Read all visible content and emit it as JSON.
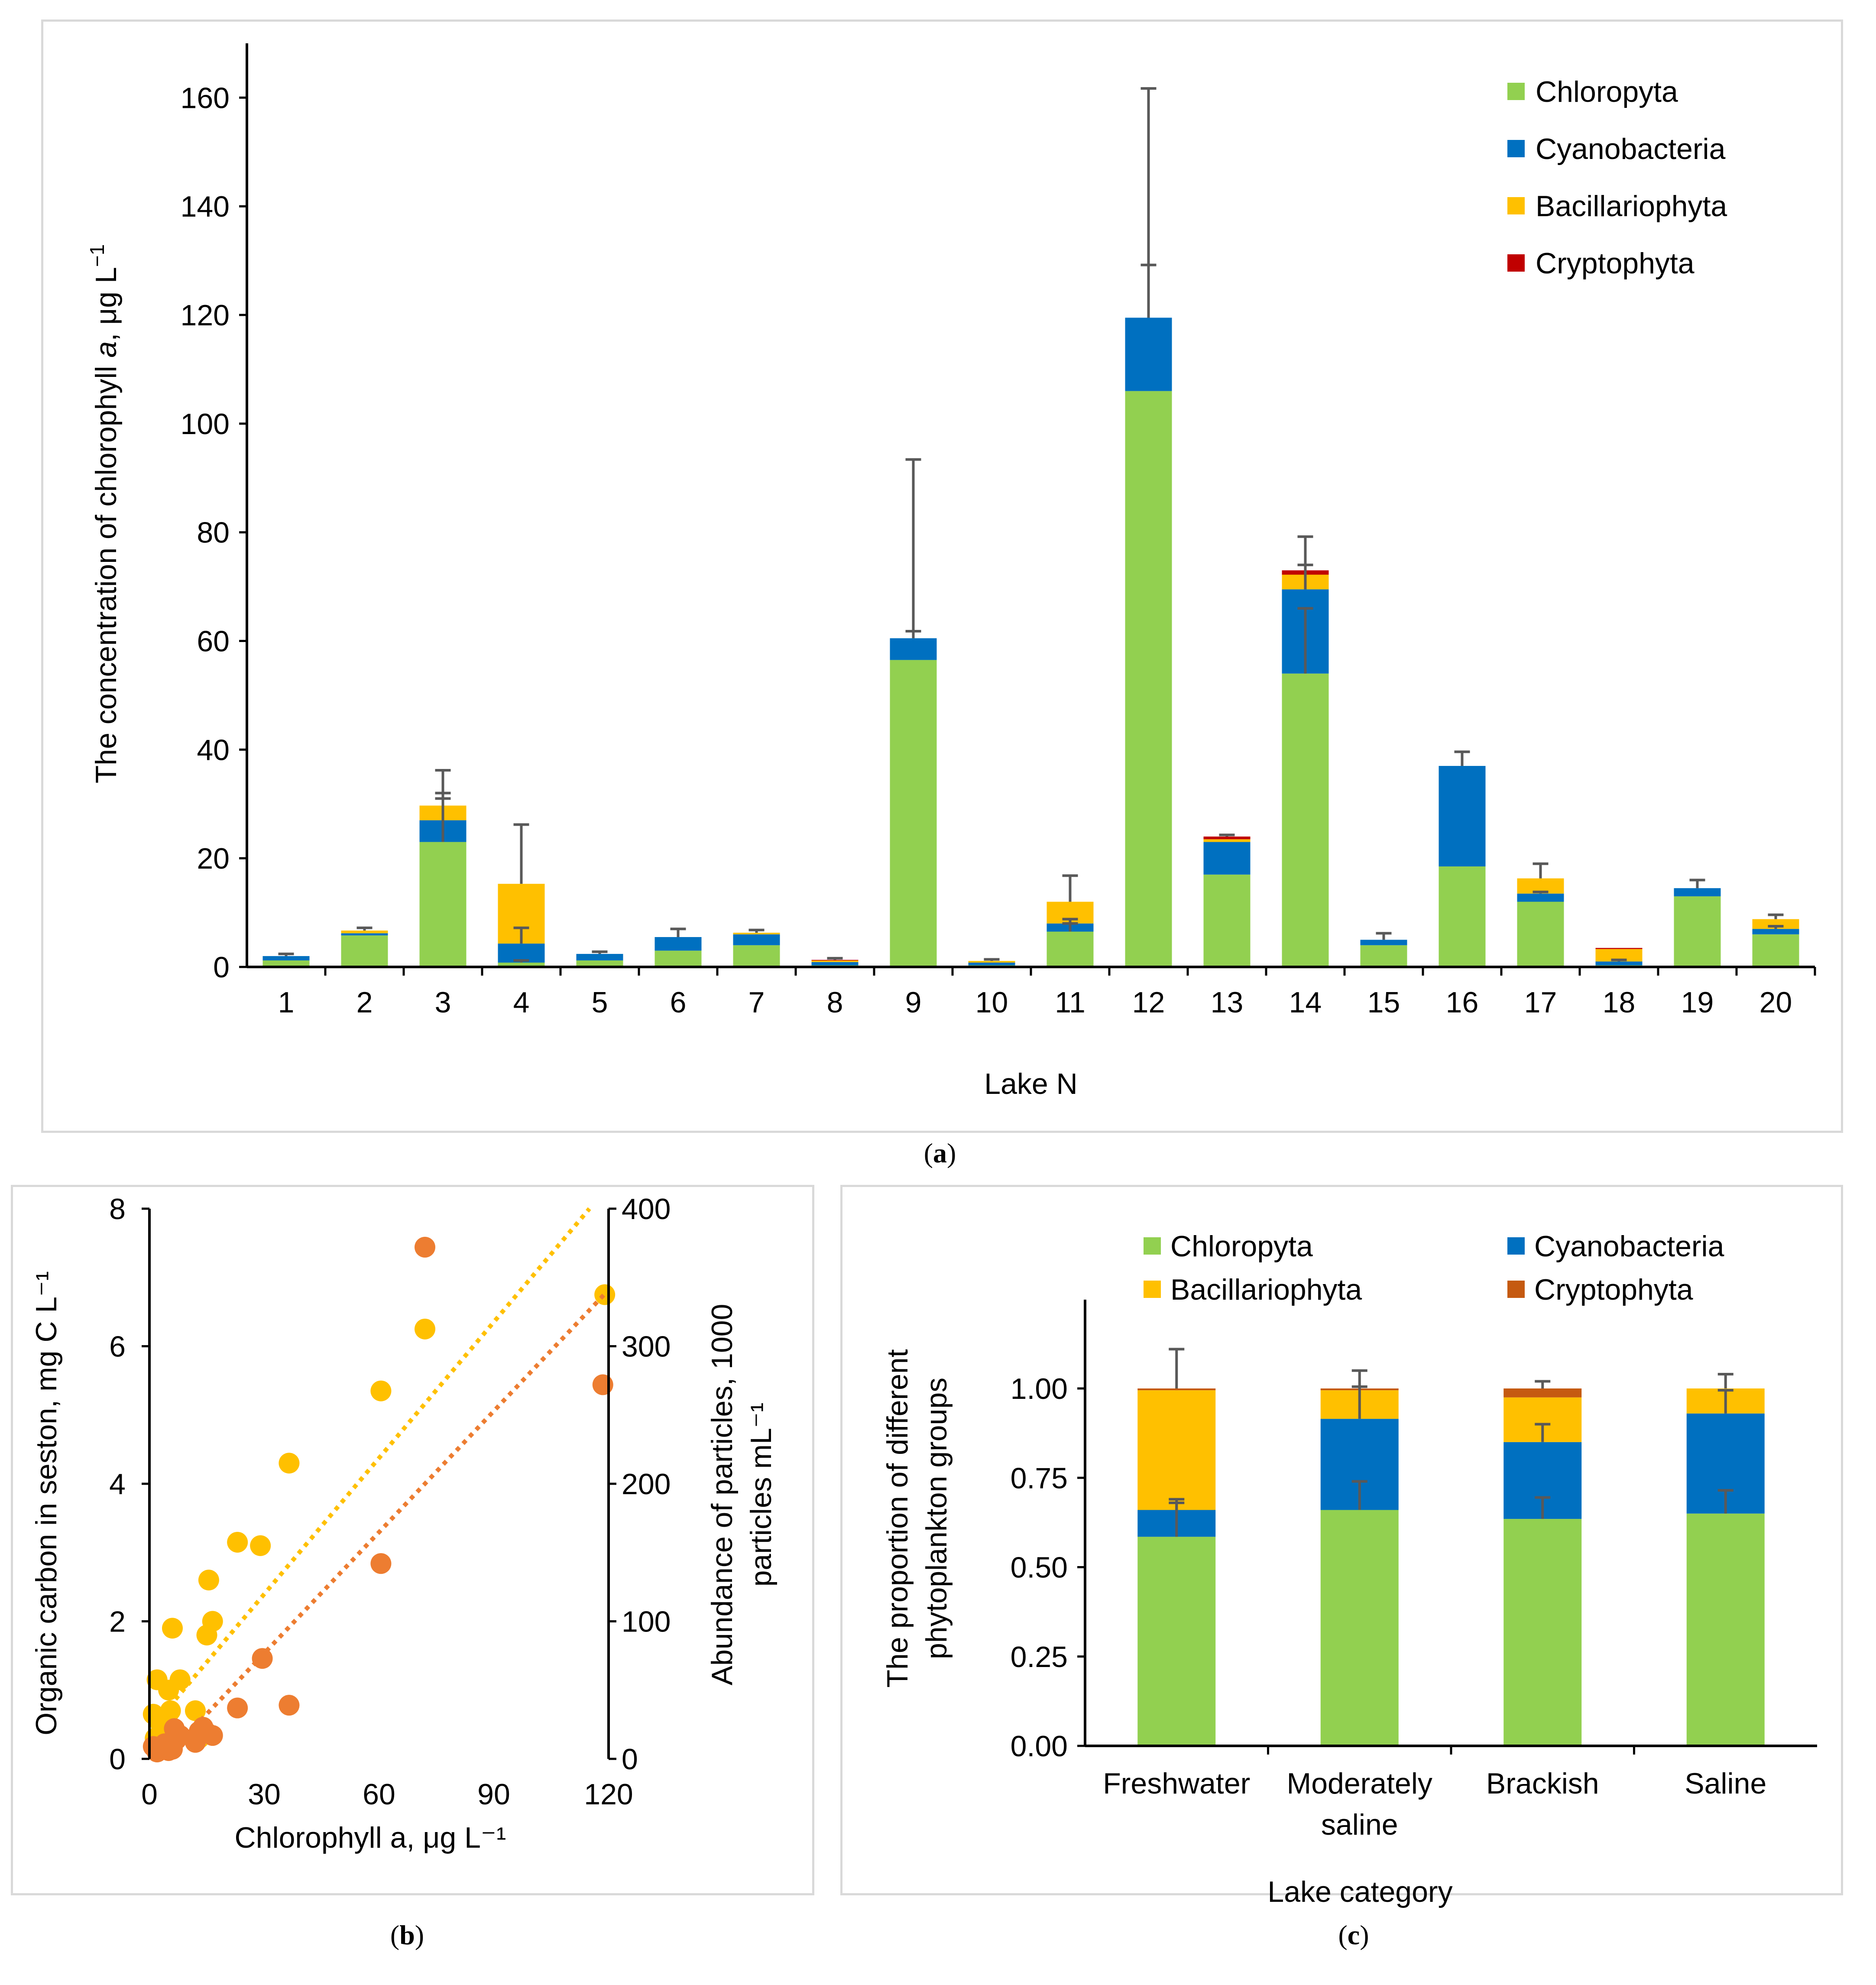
{
  "colors": {
    "chloro": "#92d050",
    "cyano": "#0070c0",
    "bacil": "#ffc000",
    "crypto_a": "#c00000",
    "crypto_c": "#c55a11",
    "scatter_carbon": "#ffc000",
    "scatter_particles": "#ed7d31",
    "errorbar": "#595959",
    "axis": "#000000",
    "frame": "#d9d9d9"
  },
  "captions": {
    "a": "a",
    "b": "b",
    "c": "c"
  },
  "chart_data": [
    {
      "id": "a",
      "type": "bar",
      "stacked": true,
      "xlabel": "Lake N",
      "ylabel_parts": [
        "The concentration of chlorophyll ",
        "a",
        ", μg L",
        "−1"
      ],
      "ylim": [
        0,
        170
      ],
      "yticks": [
        0,
        20,
        40,
        60,
        80,
        100,
        120,
        140,
        160
      ],
      "categories": [
        "1",
        "2",
        "3",
        "4",
        "5",
        "6",
        "7",
        "8",
        "9",
        "10",
        "11",
        "12",
        "13",
        "14",
        "15",
        "16",
        "17",
        "18",
        "19",
        "20"
      ],
      "series": [
        {
          "name": "Chloropyta",
          "color_key": "chloro",
          "values": [
            1.2,
            5.8,
            23,
            0.8,
            1.2,
            3,
            4,
            0.3,
            56.5,
            0.3,
            6.5,
            106,
            17,
            54,
            4,
            18.5,
            12,
            0.3,
            13,
            6
          ]
        },
        {
          "name": "Cyanobacteria",
          "color_key": "cyano",
          "values": [
            0.8,
            0.4,
            4,
            3.5,
            1.2,
            2.5,
            2,
            0.6,
            4,
            0.5,
            1.5,
            13.5,
            6,
            15.5,
            1,
            18.5,
            1.5,
            0.7,
            1.5,
            1
          ]
        },
        {
          "name": "Bacillariophyta",
          "color_key": "bacil",
          "values": [
            0,
            0.5,
            2.7,
            11,
            0,
            0,
            0.3,
            0.3,
            0,
            0.3,
            4,
            0,
            0.5,
            2.7,
            0,
            0,
            2.8,
            2.3,
            0,
            1.8
          ]
        },
        {
          "name": "Cryptophyta",
          "color_key": "crypto_a",
          "values": [
            0,
            0,
            0,
            0,
            0,
            0,
            0,
            0.1,
            0,
            0,
            0,
            0,
            0.5,
            0.8,
            0,
            0,
            0,
            0.2,
            0,
            0
          ]
        }
      ],
      "error_tops": [
        [
          2.4,
          7.2,
          36.2,
          26.2,
          2.8,
          7,
          6.8,
          1.6,
          93.4,
          1.4,
          16.8,
          161.7,
          24.3,
          79.2,
          6.2,
          39.6,
          19,
          3.6,
          16,
          9.6
        ],
        [
          null,
          null,
          32,
          7.2,
          null,
          null,
          null,
          null,
          61.8,
          null,
          8.8,
          129.2,
          null,
          74,
          null,
          27.8,
          13.8,
          1.3,
          null,
          7.5
        ],
        [
          null,
          null,
          31,
          1.2,
          null,
          null,
          null,
          null,
          null,
          null,
          8,
          null,
          null,
          66,
          null,
          null,
          null,
          null,
          null,
          null
        ]
      ]
    },
    {
      "id": "b",
      "type": "scatter",
      "xlabel": "Chlorophyll a, μg L⁻¹",
      "ylabel_left": "Organic carbon in seston, mg C L⁻¹",
      "ylabel_right_lines": [
        "Abundance of particles, 1000",
        "particles mL⁻¹"
      ],
      "xlim": [
        0,
        120
      ],
      "xticks": [
        0,
        30,
        60,
        90,
        120
      ],
      "ylim_left": [
        0,
        8
      ],
      "yticks_left": [
        0,
        2,
        4,
        6,
        8
      ],
      "ylim_right": [
        0,
        400
      ],
      "yticks_right": [
        0,
        100,
        200,
        300,
        400
      ],
      "series": [
        {
          "name": "Organic carbon",
          "axis": "left",
          "color_key": "scatter_carbon",
          "x": [
            1,
            1.5,
            2,
            3,
            4,
            5,
            5.5,
            6,
            8,
            12,
            13,
            15,
            15.5,
            16.5,
            23,
            29,
            36.5,
            60.5,
            72,
            119
          ],
          "y": [
            0.65,
            0.3,
            1.15,
            0.5,
            0.35,
            1.0,
            0.7,
            1.9,
            1.15,
            0.7,
            0.3,
            1.8,
            2.6,
            2.0,
            3.15,
            3.1,
            4.3,
            5.35,
            6.25,
            6.75
          ],
          "trend": [
            [
              2,
              0.55
            ],
            [
              115,
              8.0
            ]
          ]
        },
        {
          "name": "Particles",
          "axis": "right",
          "color_key": "scatter_particles",
          "x": [
            1,
            2,
            3,
            4,
            5,
            6,
            6.5,
            7,
            8,
            12,
            13,
            14,
            15,
            16.5,
            23,
            29.5,
            36.5,
            60.5,
            72,
            118.5
          ],
          "y": [
            9,
            5,
            8,
            11,
            6,
            7,
            22,
            14,
            17,
            12,
            20,
            23,
            19,
            17,
            37,
            73,
            39,
            142,
            372,
            272
          ],
          "trend": [
            [
              10,
              18
            ],
            [
              119,
              338
            ]
          ]
        }
      ]
    },
    {
      "id": "c",
      "type": "bar",
      "stacked": true,
      "xlabel": "Lake category",
      "ylabel_lines": [
        "The proportion of different",
        "phytoplankton groups"
      ],
      "ylim": [
        0,
        1.2
      ],
      "yticks": [
        "0.00",
        "0.25",
        "0.50",
        "0.75",
        "1.00"
      ],
      "categories": [
        "Freshwater",
        [
          "Moderately",
          "saline"
        ],
        "Brackish",
        "Saline"
      ],
      "series": [
        {
          "name": "Chloropyta",
          "color_key": "chloro",
          "values": [
            0.585,
            0.66,
            0.635,
            0.65
          ]
        },
        {
          "name": "Cyanobacteria",
          "color_key": "cyano",
          "values": [
            0.075,
            0.255,
            0.215,
            0.28
          ]
        },
        {
          "name": "Bacillariophyta",
          "color_key": "bacil",
          "values": [
            0.335,
            0.08,
            0.125,
            0.07
          ]
        },
        {
          "name": "Cryptophyta",
          "color_key": "crypto_c",
          "values": [
            0.005,
            0.005,
            0.025,
            0
          ]
        }
      ],
      "error_tops": [
        [
          0.68,
          0.74,
          0.695,
          0.715
        ],
        [
          0.69,
          1.005,
          0.9,
          0.995
        ],
        [
          1.11,
          1.05,
          1.02,
          1.04
        ]
      ]
    }
  ]
}
